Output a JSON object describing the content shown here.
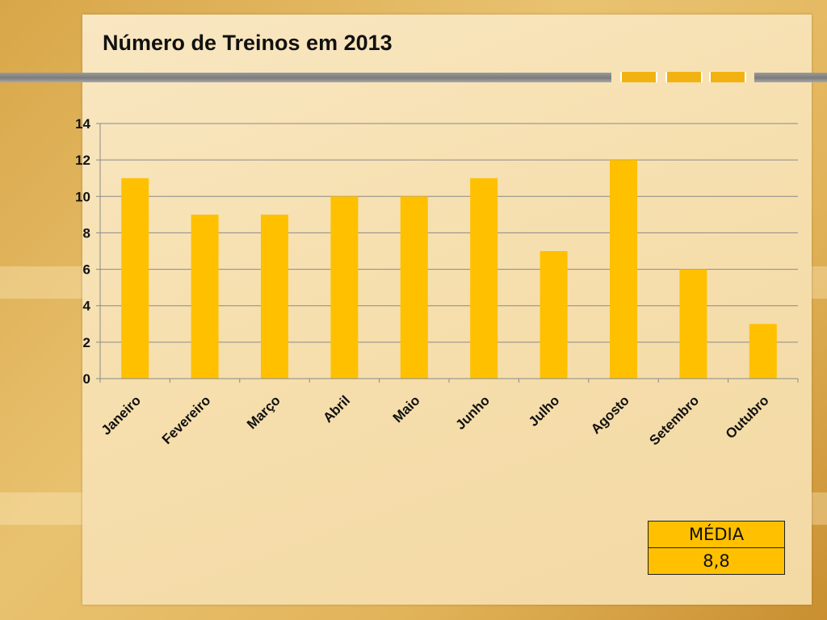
{
  "slide": {
    "title": "Número de Treinos em 2013"
  },
  "colors": {
    "bar": "#ffc000",
    "grid": "#8a8a8a",
    "rule": "#8c8c8c",
    "accent": "#f2b312"
  },
  "chart_data": {
    "type": "bar",
    "categories": [
      "Janeiro",
      "Fevereiro",
      "Março",
      "Abril",
      "Maio",
      "Junho",
      "Julho",
      "Agosto",
      "Setembro",
      "Outubro"
    ],
    "values": [
      11,
      9,
      9,
      10,
      10,
      11,
      7,
      12,
      6,
      3
    ],
    "yticks": [
      0,
      2,
      4,
      6,
      8,
      10,
      12,
      14
    ],
    "ylim": [
      0,
      14
    ],
    "grid": true,
    "legend": "none"
  },
  "summary": {
    "header": "MÉDIA",
    "value": "8,8"
  }
}
